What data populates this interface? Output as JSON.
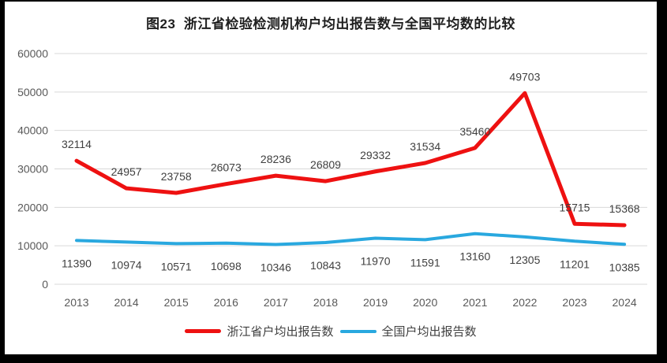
{
  "title": "图23  浙江省检验检测机构户均出报告数与全国平均数的比较",
  "colors": {
    "zhejiang_red": "#ee1111",
    "national_blue": "#29a8df",
    "gridline": "#d9d9d9",
    "axis_text": "#595959",
    "frame": "#000000",
    "panel_bg": "#ffffff"
  },
  "chart_data": {
    "type": "line",
    "categories": [
      "2013",
      "2014",
      "2015",
      "2016",
      "2017",
      "2018",
      "2019",
      "2020",
      "2021",
      "2022",
      "2023",
      "2024"
    ],
    "series": [
      {
        "name": "浙江省户均出报告数",
        "color": "#ee1111",
        "values": [
          32114,
          24957,
          23758,
          26073,
          28236,
          26809,
          29332,
          31534,
          35460,
          49703,
          15715,
          15368
        ]
      },
      {
        "name": "全国户均出报告数",
        "color": "#29a8df",
        "values": [
          11390,
          10974,
          10571,
          10698,
          10346,
          10843,
          11970,
          11591,
          13160,
          12305,
          11201,
          10385
        ]
      }
    ],
    "ylim": [
      0,
      60000
    ],
    "ytick_step": 10000,
    "ytick_labels": [
      "0",
      "10000",
      "20000",
      "30000",
      "40000",
      "50000",
      "60000"
    ],
    "grid": true,
    "data_labels": true,
    "legend_position": "bottom"
  }
}
